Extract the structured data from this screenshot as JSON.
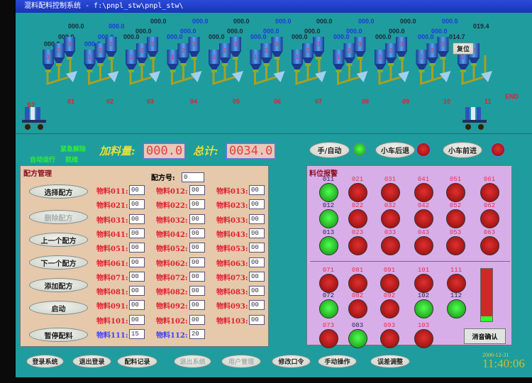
{
  "window": {
    "title": "混料配料控制系统 - f:\\pnpl_stw\\pnpl_stw\\"
  },
  "top_readings": {
    "row_a": [
      {
        "v": "000.0",
        "c": "k"
      },
      {
        "v": "000.0",
        "c": "b"
      },
      {
        "v": "000.0",
        "c": "k"
      },
      {
        "v": "000.0",
        "c": "b"
      },
      {
        "v": "000.0",
        "c": "k"
      },
      {
        "v": "000.0",
        "c": "b"
      },
      {
        "v": "000.0",
        "c": "k"
      },
      {
        "v": "000.0",
        "c": "b"
      }
    ],
    "row_b": [
      {
        "v": "000.0",
        "c": "k"
      },
      {
        "v": "000.0",
        "c": "b"
      },
      {
        "v": "019.4",
        "c": "k"
      }
    ],
    "row_c": [
      {
        "v": "000.0",
        "c": "k"
      },
      {
        "v": "000.0",
        "c": "b"
      },
      {
        "v": "000.0",
        "c": "k"
      },
      {
        "v": "000.0",
        "c": "b"
      },
      {
        "v": "000.0",
        "c": "k"
      },
      {
        "v": "000.0",
        "c": "b"
      },
      {
        "v": "000.0",
        "c": "k"
      },
      {
        "v": "000.0",
        "c": "b"
      }
    ],
    "row_d": [
      {
        "v": "000.0",
        "c": "k"
      },
      {
        "v": "000.0",
        "c": "b"
      },
      {
        "v": "000.0",
        "c": "k"
      },
      {
        "v": "000.0",
        "c": "b"
      },
      {
        "v": "000.0",
        "c": "k"
      },
      {
        "v": "000.0",
        "c": "b"
      },
      {
        "v": "000.0",
        "c": "k"
      },
      {
        "v": "000.0",
        "c": "b"
      },
      {
        "v": "000.0",
        "c": "k"
      },
      {
        "v": "000.0",
        "c": "b"
      },
      {
        "v": "014.7",
        "c": "k"
      }
    ],
    "row_e": [
      {
        "v": "000.0",
        "c": "k"
      },
      {
        "v": "000.0",
        "c": "b"
      }
    ]
  },
  "process": {
    "stations": [
      "01",
      "02",
      "03",
      "04",
      "05",
      "06",
      "07",
      "08",
      "09",
      "10",
      "11"
    ],
    "start_label": "ST",
    "end_label": "END",
    "reset_button": "复位"
  },
  "status": {
    "line1": "紧急解除",
    "line2": "自动运行",
    "line3": "就绪"
  },
  "feed": {
    "amount_label": "加料量:",
    "amount_value": "000.0",
    "total_label": "总计:",
    "total_value": "0034.0"
  },
  "controls": [
    {
      "label": "手/自动",
      "lamp": "green"
    },
    {
      "label": "小车后退",
      "lamp": "red"
    },
    {
      "label": "小车前进",
      "lamp": "red"
    }
  ],
  "recipe": {
    "title": "配方管理",
    "number_label": "配方号:",
    "number_value": "0",
    "buttons": [
      {
        "label": "选择配方",
        "enabled": true
      },
      {
        "label": "删除配方",
        "enabled": false
      },
      {
        "label": "上一个配方",
        "enabled": true
      },
      {
        "label": "下一个配方",
        "enabled": true
      },
      {
        "label": "添加配方",
        "enabled": true
      },
      {
        "label": "启动",
        "enabled": true
      },
      {
        "label": "暂停配料",
        "enabled": true
      }
    ],
    "materials": [
      [
        {
          "l": "物料011:",
          "v": "00"
        },
        {
          "l": "物料012:",
          "v": "00"
        },
        {
          "l": "物料013:",
          "v": "00"
        }
      ],
      [
        {
          "l": "物料021:",
          "v": "00"
        },
        {
          "l": "物料022:",
          "v": "00"
        },
        {
          "l": "物料023:",
          "v": "00"
        }
      ],
      [
        {
          "l": "物料031:",
          "v": "00"
        },
        {
          "l": "物料032:",
          "v": "00"
        },
        {
          "l": "物料033:",
          "v": "00"
        }
      ],
      [
        {
          "l": "物料041:",
          "v": "00"
        },
        {
          "l": "物料042:",
          "v": "00"
        },
        {
          "l": "物料043:",
          "v": "00"
        }
      ],
      [
        {
          "l": "物料051:",
          "v": "00"
        },
        {
          "l": "物料052:",
          "v": "00"
        },
        {
          "l": "物料053:",
          "v": "00"
        }
      ],
      [
        {
          "l": "物料061:",
          "v": "00"
        },
        {
          "l": "物料062:",
          "v": "00"
        },
        {
          "l": "物料063:",
          "v": "00"
        }
      ],
      [
        {
          "l": "物料071:",
          "v": "00"
        },
        {
          "l": "物料072:",
          "v": "00"
        },
        {
          "l": "物料073:",
          "v": "00"
        }
      ],
      [
        {
          "l": "物料081:",
          "v": "00"
        },
        {
          "l": "物料082:",
          "v": "00"
        },
        {
          "l": "物料083:",
          "v": "00"
        }
      ],
      [
        {
          "l": "物料091:",
          "v": "00"
        },
        {
          "l": "物料092:",
          "v": "00"
        },
        {
          "l": "物料093:",
          "v": "00"
        }
      ],
      [
        {
          "l": "物料101:",
          "v": "00"
        },
        {
          "l": "物料102:",
          "v": "00"
        },
        {
          "l": "物料103:",
          "v": "00"
        }
      ],
      [
        {
          "l": "物料111:",
          "v": "15",
          "blue": true
        },
        {
          "l": "物料112:",
          "v": "20",
          "blue": true
        }
      ]
    ]
  },
  "alarm": {
    "title": "料位报警",
    "ack_button": "消音确认",
    "level_fill": 0.1,
    "upper": [
      [
        {
          "id": "011",
          "s": "green"
        },
        {
          "id": "021",
          "s": "red"
        },
        {
          "id": "031",
          "s": "red"
        },
        {
          "id": "041",
          "s": "red"
        },
        {
          "id": "051",
          "s": "red"
        },
        {
          "id": "061",
          "s": "red"
        }
      ],
      [
        {
          "id": "012",
          "s": "green"
        },
        {
          "id": "022",
          "s": "red"
        },
        {
          "id": "032",
          "s": "red"
        },
        {
          "id": "042",
          "s": "red"
        },
        {
          "id": "052",
          "s": "red"
        },
        {
          "id": "062",
          "s": "red"
        }
      ],
      [
        {
          "id": "013",
          "s": "green"
        },
        {
          "id": "023",
          "s": "red"
        },
        {
          "id": "033",
          "s": "red"
        },
        {
          "id": "043",
          "s": "red"
        },
        {
          "id": "053",
          "s": "red"
        },
        {
          "id": "063",
          "s": "red"
        }
      ]
    ],
    "lower": [
      [
        {
          "id": "071",
          "s": "red"
        },
        {
          "id": "081",
          "s": "red"
        },
        {
          "id": "091",
          "s": "red"
        },
        {
          "id": "101",
          "s": "red"
        },
        {
          "id": "111",
          "s": "red"
        }
      ],
      [
        {
          "id": "072",
          "s": "green"
        },
        {
          "id": "082",
          "s": "red"
        },
        {
          "id": "092",
          "s": "red"
        },
        {
          "id": "102",
          "s": "green"
        },
        {
          "id": "112",
          "s": "green"
        }
      ],
      [
        {
          "id": "073",
          "s": "red"
        },
        {
          "id": "083",
          "s": "green"
        },
        {
          "id": "093",
          "s": "red"
        },
        {
          "id": "103",
          "s": "red"
        }
      ]
    ]
  },
  "bottom_bar": {
    "buttons": [
      {
        "label": "登录系统",
        "enabled": true
      },
      {
        "label": "退出登录",
        "enabled": true
      },
      {
        "label": "配料记录",
        "enabled": true
      },
      {
        "label": "退出系统",
        "enabled": false
      },
      {
        "label": "用户管理",
        "enabled": false
      },
      {
        "label": "修改口令",
        "enabled": true
      },
      {
        "label": "手动操作",
        "enabled": true
      },
      {
        "label": "误差调整",
        "enabled": true
      }
    ],
    "date": "2006-12-31",
    "time": "11:40:06"
  },
  "colors": {
    "background": "#1f9c9e",
    "recipe_panel": "#e8c8a8",
    "alarm_panel": "#d8aee8",
    "alarm_red": "#c01818",
    "ok_green": "#30e030"
  }
}
